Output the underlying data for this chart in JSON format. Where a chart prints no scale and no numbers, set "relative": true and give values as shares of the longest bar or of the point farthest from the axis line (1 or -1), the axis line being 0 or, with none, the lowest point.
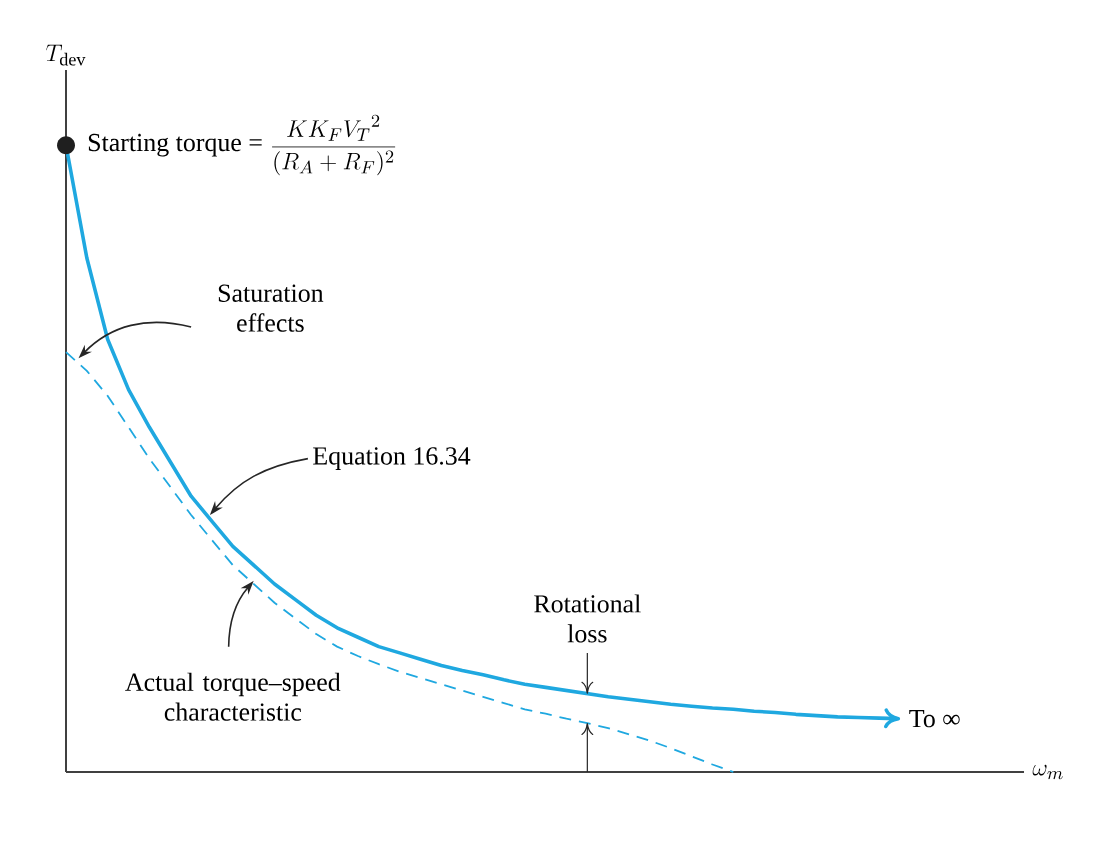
{
  "chart_data": {
    "type": "line",
    "relative": true,
    "xlabel": "\\omega_m",
    "ylabel": "T_{\\mathrm{dev}}",
    "categories": [
      null,
      null,
      null,
      null,
      null,
      null,
      null,
      null,
      null,
      null,
      null,
      null,
      null,
      null,
      null,
      null,
      null,
      null,
      null,
      null,
      null,
      null,
      null,
      null,
      null,
      null,
      null,
      null,
      null,
      null,
      null,
      null,
      null,
      null,
      null,
      null,
      null,
      null,
      null,
      null,
      null,
      null,
      null,
      null,
      null,
      null
    ],
    "series": [
      {
        "color": "#1fa8e0",
        "line_style": "solid",
        "values": [
          1.0,
          0.82,
          0.69,
          0.61,
          0.55,
          0.495,
          0.44,
          0.4,
          0.36,
          0.33,
          0.3,
          0.275,
          0.25,
          0.23,
          0.215,
          0.2,
          0.19,
          0.18,
          0.17,
          0.162,
          0.155,
          0.147,
          0.14,
          0.135,
          0.13,
          0.125,
          0.12,
          0.116,
          0.112,
          0.108,
          0.105,
          0.102,
          0.1,
          0.097,
          0.095,
          0.092,
          0.09,
          0.088,
          0.087,
          0.086,
          0.085,
          null,
          null,
          null,
          null,
          null
        ]
      },
      {
        "color": "#1fa8e0",
        "line_style": "dashed",
        "values": [
          0.67,
          0.64,
          0.6,
          0.55,
          0.5,
          0.455,
          0.41,
          0.37,
          0.33,
          0.3,
          0.27,
          0.245,
          0.22,
          0.2,
          0.185,
          0.172,
          0.16,
          0.15,
          0.14,
          0.13,
          0.12,
          0.11,
          0.1,
          0.093,
          0.085,
          0.078,
          0.07,
          0.06,
          0.05,
          0.038,
          0.025,
          0.012,
          0.0,
          null,
          null,
          null,
          null,
          null,
          null,
          null,
          null,
          null,
          null,
          null,
          null,
          null
        ]
      }
    ],
    "annotations": [
      "Starting torque =",
      "\\frac{KK_F{V_T}^2}{(R_A+R_F)^2}",
      "Saturation effects",
      "Equation 16.34",
      "Actual torque–speed characteristic",
      "Rotational loss",
      "To ∞"
    ]
  }
}
